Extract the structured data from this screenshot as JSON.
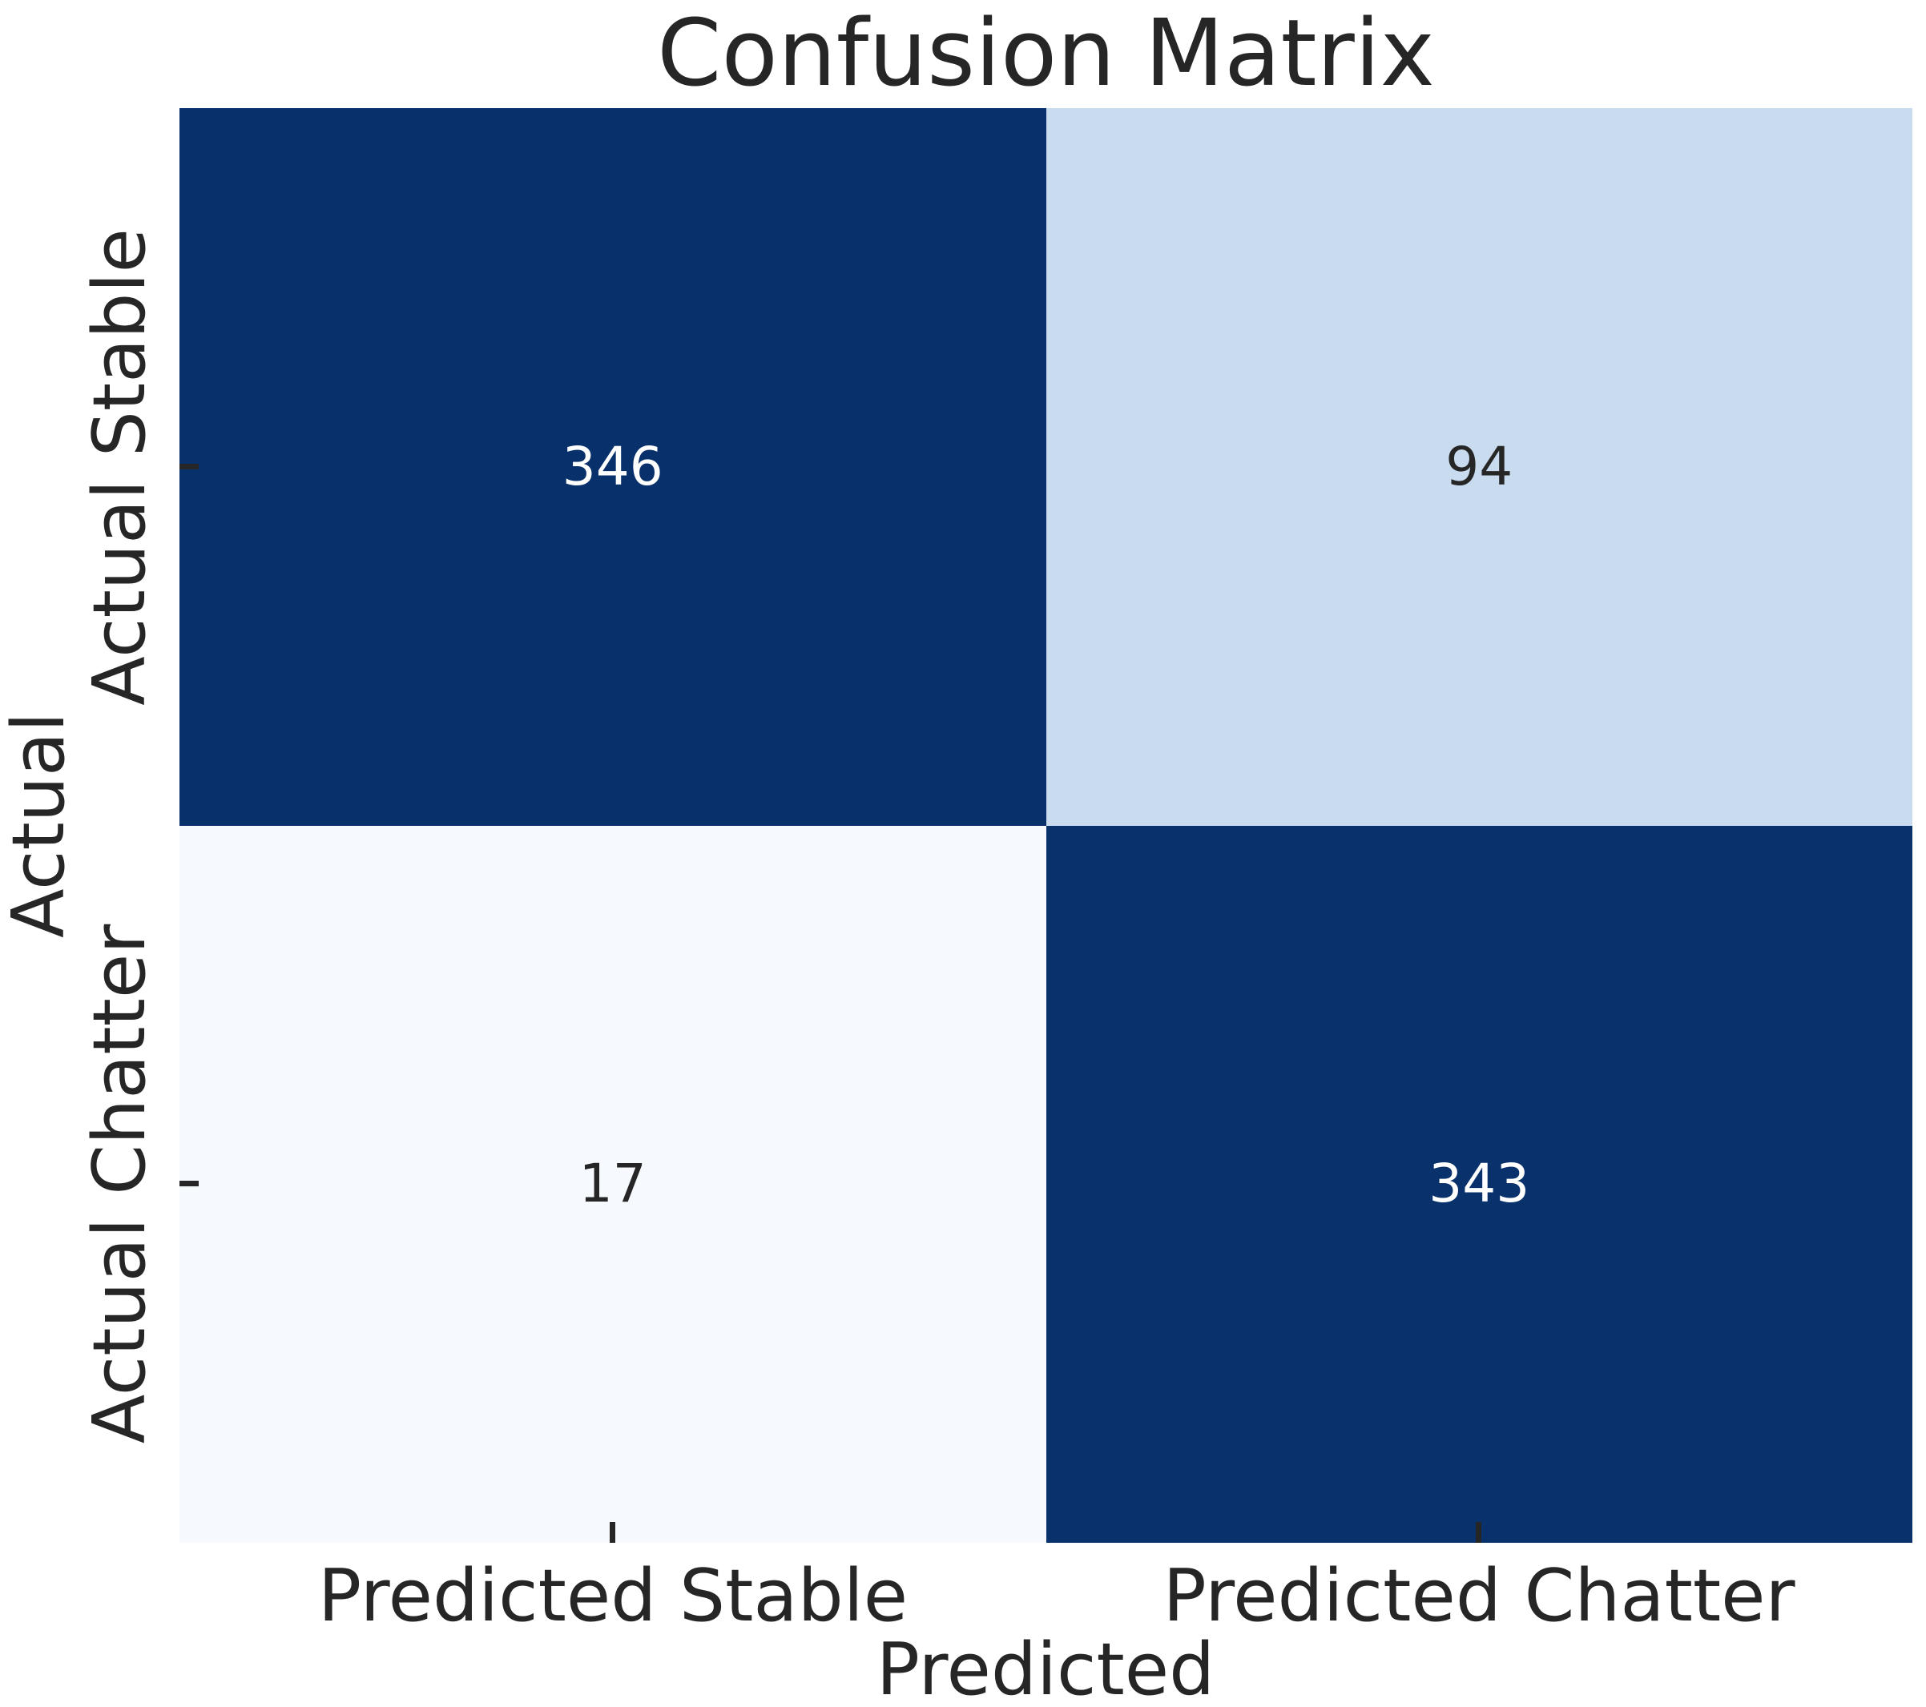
{
  "chart_data": {
    "type": "heatmap",
    "title": "Confusion Matrix",
    "xlabel": "Predicted",
    "ylabel": "Actual",
    "x_tick_labels": [
      "Predicted Stable",
      "Predicted Chatter"
    ],
    "y_tick_labels": [
      "Actual Stable",
      "Actual Chatter"
    ],
    "values": [
      [
        346,
        94
      ],
      [
        17,
        343
      ]
    ],
    "colormap": "Blues",
    "color_scale": {
      "low_color": "#f7fbff",
      "high_color": "#08306b"
    },
    "grid": "off",
    "legend": "none",
    "cells": [
      {
        "row": "Actual Stable",
        "col": "Predicted Stable",
        "value": 346,
        "bg": "#08306b",
        "fg": "#ffffff"
      },
      {
        "row": "Actual Stable",
        "col": "Predicted Chatter",
        "value": 94,
        "bg": "#c9dbee",
        "fg": "#262626"
      },
      {
        "row": "Actual Chatter",
        "col": "Predicted Stable",
        "value": 17,
        "bg": "#f6f9fd",
        "fg": "#262626"
      },
      {
        "row": "Actual Chatter",
        "col": "Predicted Chatter",
        "value": 343,
        "bg": "#09316c",
        "fg": "#ffffff"
      }
    ]
  }
}
